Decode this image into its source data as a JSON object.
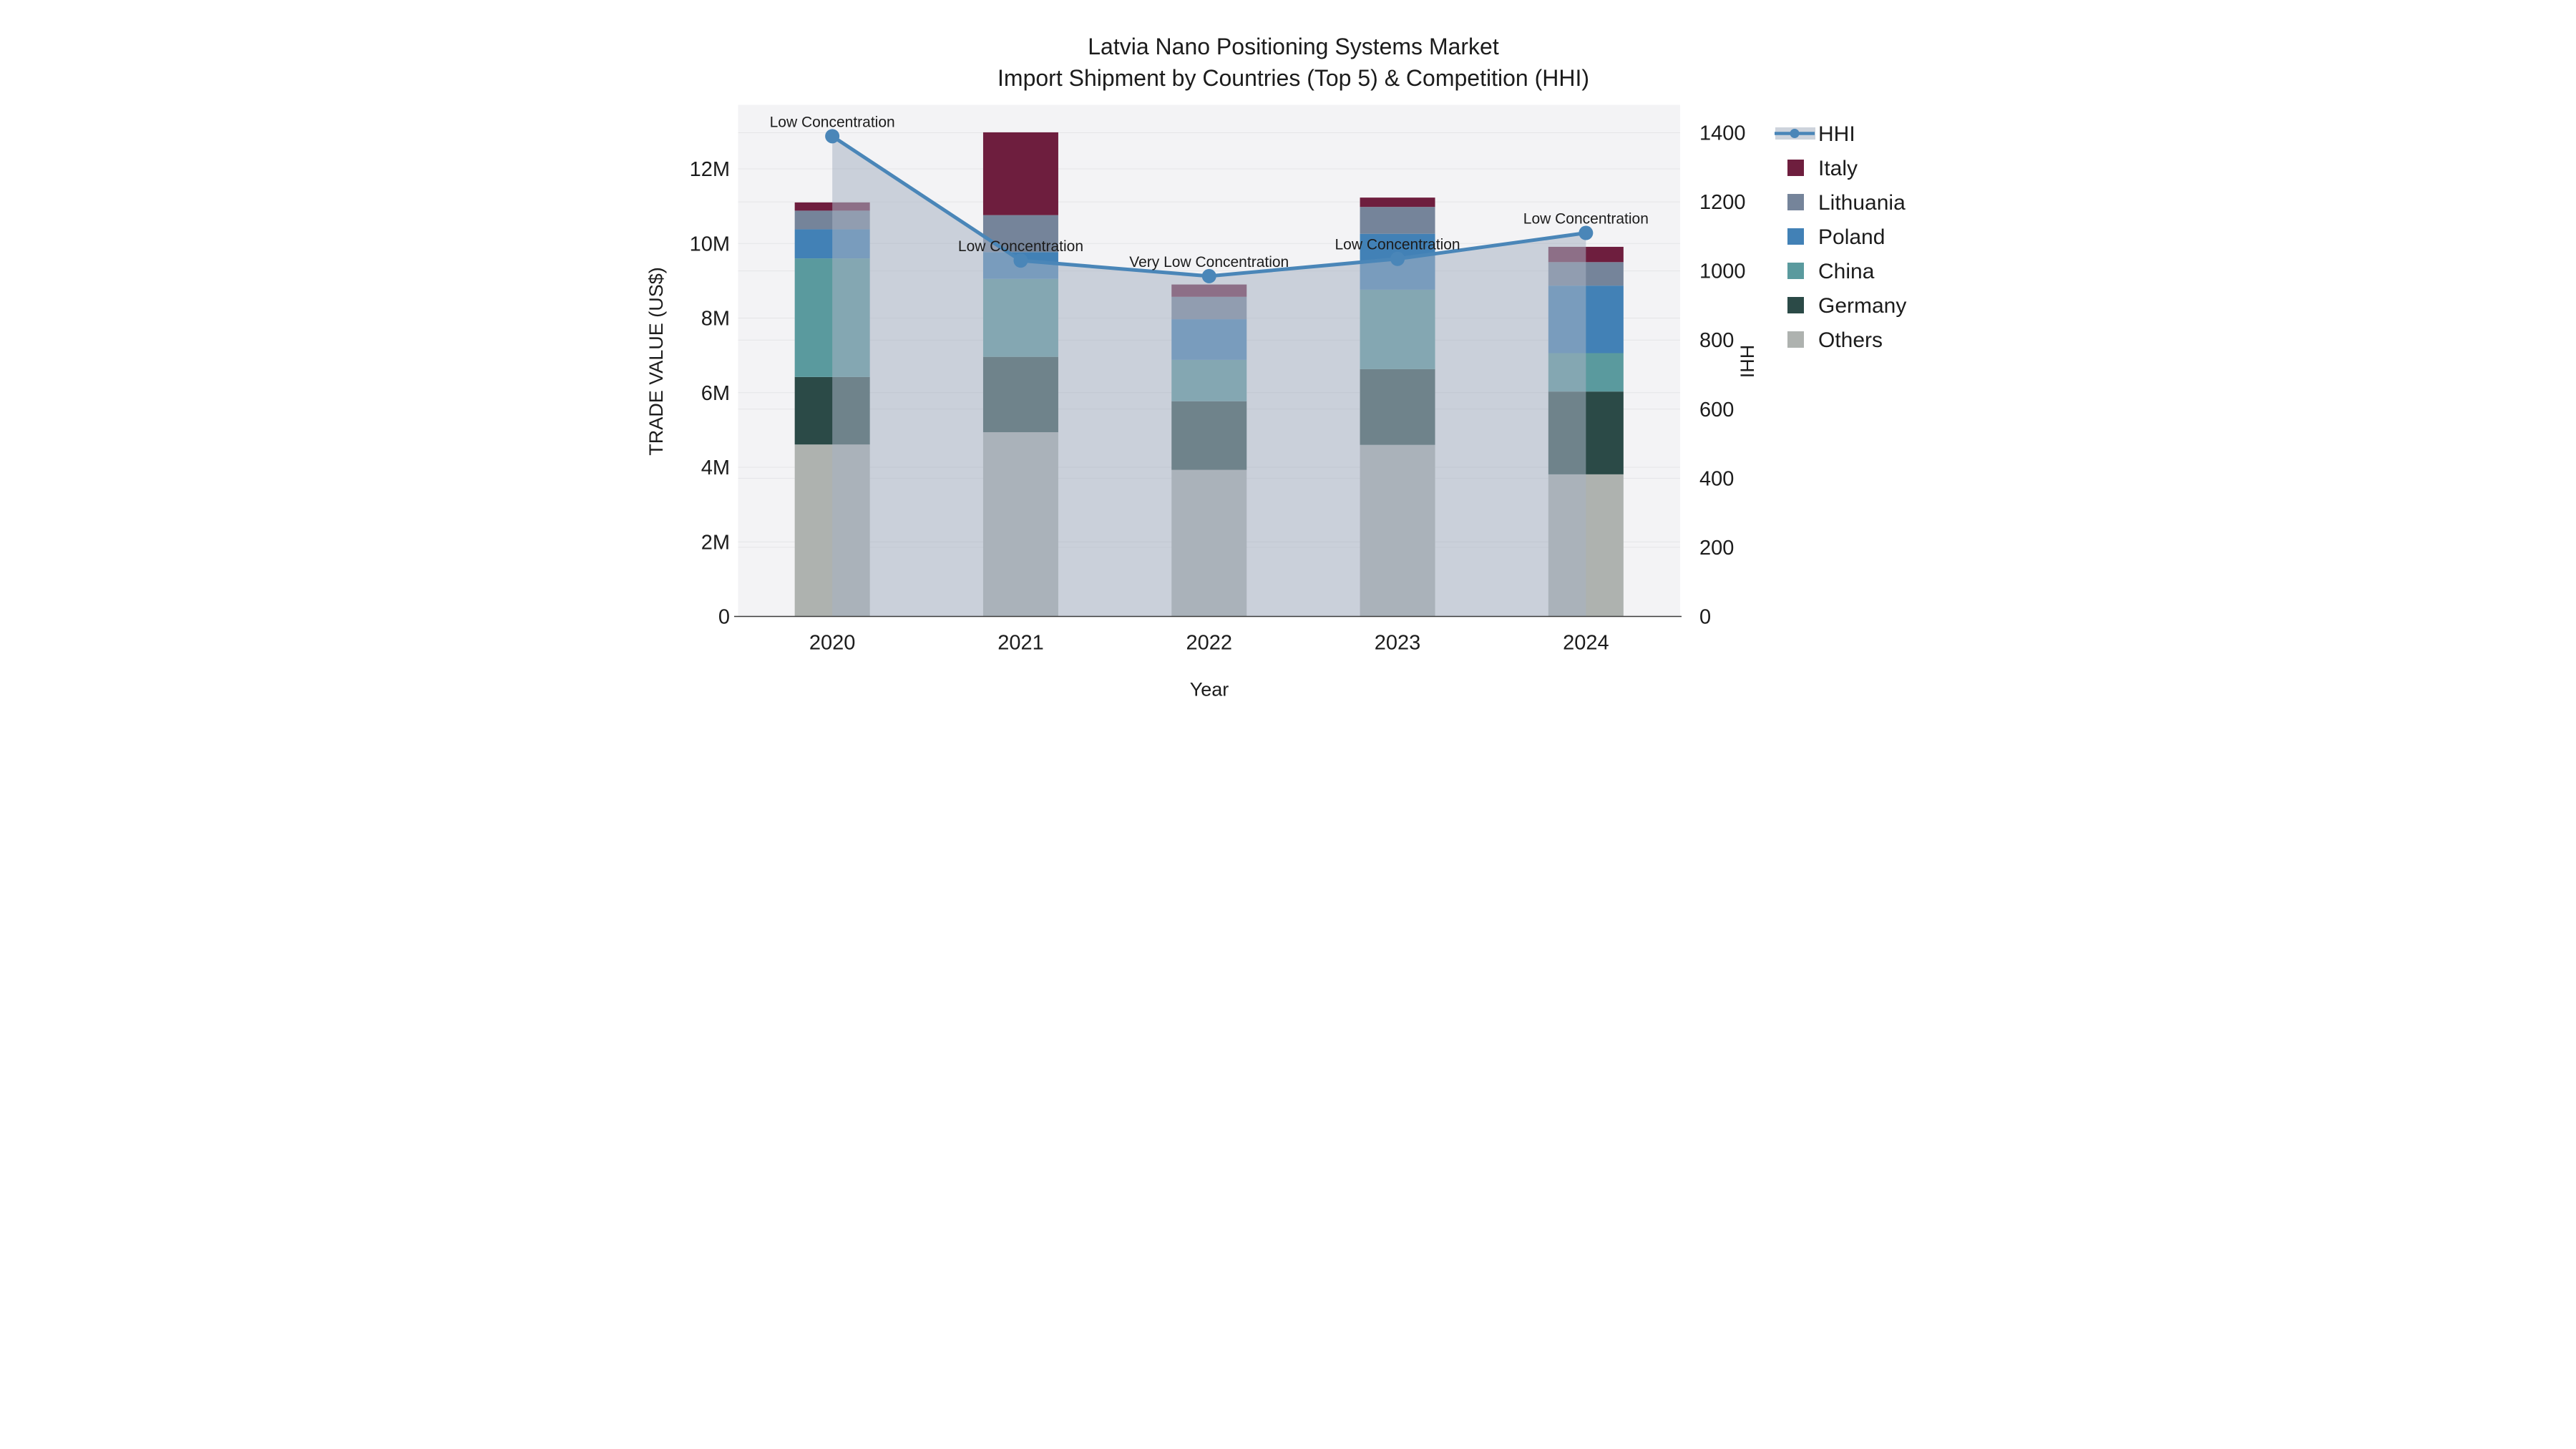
{
  "title": {
    "line1": "Latvia Nano Positioning Systems Market",
    "line2": "Import Shipment by Countries (Top 5) & Competition (HHI)"
  },
  "chart_data": {
    "type": "bar",
    "bar_mode": "stacked",
    "overlay": "line-with-area",
    "title": "Latvia Nano Positioning Systems Market — Import Shipment by Countries (Top 5) & Competition (HHI)",
    "xlabel": "Year",
    "ylabel_left": "TRADE VALUE (US$)",
    "ylabel_right": "HHI",
    "categories": [
      "2020",
      "2021",
      "2022",
      "2023",
      "2024"
    ],
    "series": [
      {
        "name": "Others",
        "color": "#aeb2af",
        "values_usd": [
          4610000,
          4940000,
          3930000,
          4600000,
          3810000
        ]
      },
      {
        "name": "Germany",
        "color": "#2b4a47",
        "values_usd": [
          1810000,
          2020000,
          1840000,
          2030000,
          2220000
        ]
      },
      {
        "name": "China",
        "color": "#5a9a9e",
        "values_usd": [
          3180000,
          2090000,
          1110000,
          2130000,
          1030000
        ]
      },
      {
        "name": "Poland",
        "color": "#4281b6",
        "values_usd": [
          780000,
          720000,
          1090000,
          1500000,
          1810000
        ]
      },
      {
        "name": "Lithuania",
        "color": "#75849a",
        "values_usd": [
          500000,
          990000,
          600000,
          720000,
          630000
        ]
      },
      {
        "name": "Italy",
        "color": "#6e1e3e",
        "values_usd": [
          220000,
          2220000,
          330000,
          250000,
          410000
        ]
      }
    ],
    "totals_usd": [
      11100000,
      12980000,
      8900000,
      11230000,
      9910000
    ],
    "hhi_line": {
      "name": "HHI",
      "color": "#4a86b8",
      "area_fill": "rgba(168,178,195,0.55)",
      "values": [
        1390,
        1030,
        985,
        1035,
        1110
      ]
    },
    "annotations": [
      "Low Concentration",
      "Low Concentration",
      "Very Low Concentration",
      "Low Concentration",
      "Low Concentration"
    ],
    "y_left_ticks": [
      {
        "label": "0",
        "value": 0
      },
      {
        "label": "2M",
        "value": 2000000
      },
      {
        "label": "4M",
        "value": 4000000
      },
      {
        "label": "6M",
        "value": 6000000
      },
      {
        "label": "8M",
        "value": 8000000
      },
      {
        "label": "10M",
        "value": 10000000
      },
      {
        "label": "12M",
        "value": 12000000
      }
    ],
    "y_right_ticks": [
      {
        "label": "0",
        "value": 0
      },
      {
        "label": "200",
        "value": 200
      },
      {
        "label": "400",
        "value": 400
      },
      {
        "label": "600",
        "value": 600
      },
      {
        "label": "800",
        "value": 800
      },
      {
        "label": "1000",
        "value": 1000
      },
      {
        "label": "1200",
        "value": 1200
      },
      {
        "label": "1400",
        "value": 1400
      }
    ],
    "ylim_left_usd": [
      0,
      13700000
    ],
    "ylim_right": [
      0,
      1400
    ],
    "grid": true,
    "legend_position": "right",
    "legend_order": [
      "HHI",
      "Italy",
      "Lithuania",
      "Poland",
      "China",
      "Germany",
      "Others"
    ],
    "plot_bg_color": "#f3f3f5",
    "grid_color": "#e4e5e7",
    "axis_line_color": "#3a3a3a"
  }
}
